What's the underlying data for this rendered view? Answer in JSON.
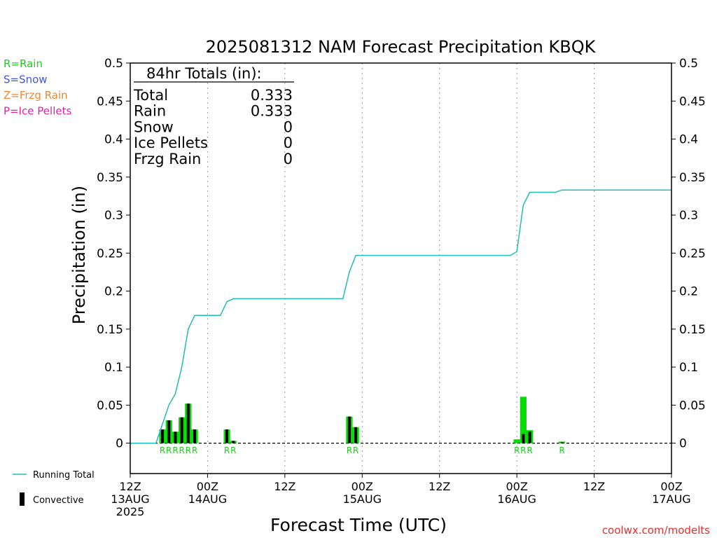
{
  "chart_data": {
    "type": "bar",
    "title": "2025081312 NAM Forecast Precipitation KBQK",
    "xlabel": "Forecast Time (UTC)",
    "ylabel": "Precipitation (in)",
    "ylim": [
      -0.04,
      0.5
    ],
    "xlim": [
      0,
      84
    ],
    "y_ticks": [
      "0",
      "0.05",
      "0.1",
      "0.15",
      "0.2",
      "0.25",
      "0.3",
      "0.35",
      "0.4",
      "0.45",
      "0.5"
    ],
    "y_tick_values": [
      0,
      0.05,
      0.1,
      0.15,
      0.2,
      0.25,
      0.3,
      0.35,
      0.4,
      0.45,
      0.5
    ],
    "x_ticks": [
      {
        "hour": 0,
        "lines": [
          "12Z",
          "13AUG",
          "2025"
        ]
      },
      {
        "hour": 12,
        "lines": [
          "00Z",
          "14AUG"
        ]
      },
      {
        "hour": 24,
        "lines": [
          "12Z"
        ]
      },
      {
        "hour": 36,
        "lines": [
          "00Z",
          "15AUG"
        ]
      },
      {
        "hour": 48,
        "lines": [
          "12Z"
        ]
      },
      {
        "hour": 60,
        "lines": [
          "00Z",
          "16AUG"
        ]
      },
      {
        "hour": 72,
        "lines": [
          "12Z"
        ]
      },
      {
        "hour": 84,
        "lines": [
          "00Z",
          "17AUG"
        ]
      }
    ],
    "grid": "vertical dotted",
    "legend_type": [
      {
        "text": "R=Rain",
        "color": "#22cc22"
      },
      {
        "text": "S=Snow",
        "color": "#4455dd"
      },
      {
        "text": "Z=Frzg Rain",
        "color": "#ee8833"
      },
      {
        "text": "P=Ice Pellets",
        "color": "#dd22aa"
      }
    ],
    "legend_series": [
      {
        "text": "Running Total",
        "color": "#22bbbb"
      },
      {
        "text": "Convective",
        "color": "#000000"
      }
    ],
    "totals_box": {
      "header": "84hr Totals (in):",
      "rows": [
        {
          "label": "Total",
          "value": "0.333"
        },
        {
          "label": "Rain",
          "value": "0.333"
        },
        {
          "label": "Snow",
          "value": "0"
        },
        {
          "label": "Ice Pellets",
          "value": "0"
        },
        {
          "label": "Frzg Rain",
          "value": "0"
        }
      ]
    },
    "series": [
      {
        "name": "Running Total",
        "color": "#22bbbb",
        "points": [
          [
            0,
            0
          ],
          [
            4,
            0
          ],
          [
            6,
            0.05
          ],
          [
            7,
            0.065
          ],
          [
            8,
            0.1
          ],
          [
            9,
            0.15
          ],
          [
            10,
            0.168
          ],
          [
            14,
            0.168
          ],
          [
            15,
            0.186
          ],
          [
            16,
            0.19
          ],
          [
            33,
            0.19
          ],
          [
            34,
            0.225
          ],
          [
            35,
            0.247
          ],
          [
            59,
            0.247
          ],
          [
            60,
            0.252
          ],
          [
            61,
            0.313
          ],
          [
            62,
            0.33
          ],
          [
            66,
            0.33
          ],
          [
            67,
            0.333
          ],
          [
            84,
            0.333
          ]
        ]
      },
      {
        "name": "Precipitation",
        "color": "#00dd00",
        "bars": [
          {
            "hour": 5,
            "value": 0.018
          },
          {
            "hour": 6,
            "value": 0.03
          },
          {
            "hour": 7,
            "value": 0.015
          },
          {
            "hour": 8,
            "value": 0.034
          },
          {
            "hour": 9,
            "value": 0.052
          },
          {
            "hour": 10,
            "value": 0.018
          },
          {
            "hour": 15,
            "value": 0.018
          },
          {
            "hour": 16,
            "value": 0.003
          },
          {
            "hour": 34,
            "value": 0.035
          },
          {
            "hour": 35,
            "value": 0.021
          },
          {
            "hour": 60,
            "value": 0.005
          },
          {
            "hour": 61,
            "value": 0.061
          },
          {
            "hour": 62,
            "value": 0.017
          },
          {
            "hour": 67,
            "value": 0.002
          }
        ]
      },
      {
        "name": "Convective",
        "color": "#000000",
        "bars": [
          {
            "hour": 5,
            "value": 0.018
          },
          {
            "hour": 6,
            "value": 0.03
          },
          {
            "hour": 7,
            "value": 0.015
          },
          {
            "hour": 8,
            "value": 0.034
          },
          {
            "hour": 9,
            "value": 0.052
          },
          {
            "hour": 10,
            "value": 0.018
          },
          {
            "hour": 15,
            "value": 0.018
          },
          {
            "hour": 16,
            "value": 0.003
          },
          {
            "hour": 34,
            "value": 0.035
          },
          {
            "hour": 35,
            "value": 0.021
          },
          {
            "hour": 60,
            "value": 0.0
          },
          {
            "hour": 61,
            "value": 0.012
          },
          {
            "hour": 62,
            "value": 0.015
          },
          {
            "hour": 67,
            "value": 0.001
          }
        ]
      }
    ],
    "type_markers": [
      {
        "hour": 5,
        "text": "R"
      },
      {
        "hour": 6,
        "text": "R"
      },
      {
        "hour": 7,
        "text": "R"
      },
      {
        "hour": 8,
        "text": "R"
      },
      {
        "hour": 9,
        "text": "R"
      },
      {
        "hour": 10,
        "text": "R"
      },
      {
        "hour": 15,
        "text": "R"
      },
      {
        "hour": 16,
        "text": "R"
      },
      {
        "hour": 34,
        "text": "R"
      },
      {
        "hour": 35,
        "text": "R"
      },
      {
        "hour": 60,
        "text": "R"
      },
      {
        "hour": 61,
        "text": "R"
      },
      {
        "hour": 62,
        "text": "R"
      },
      {
        "hour": 67,
        "text": "R"
      }
    ],
    "credit": "coolwx.com/modelts"
  }
}
